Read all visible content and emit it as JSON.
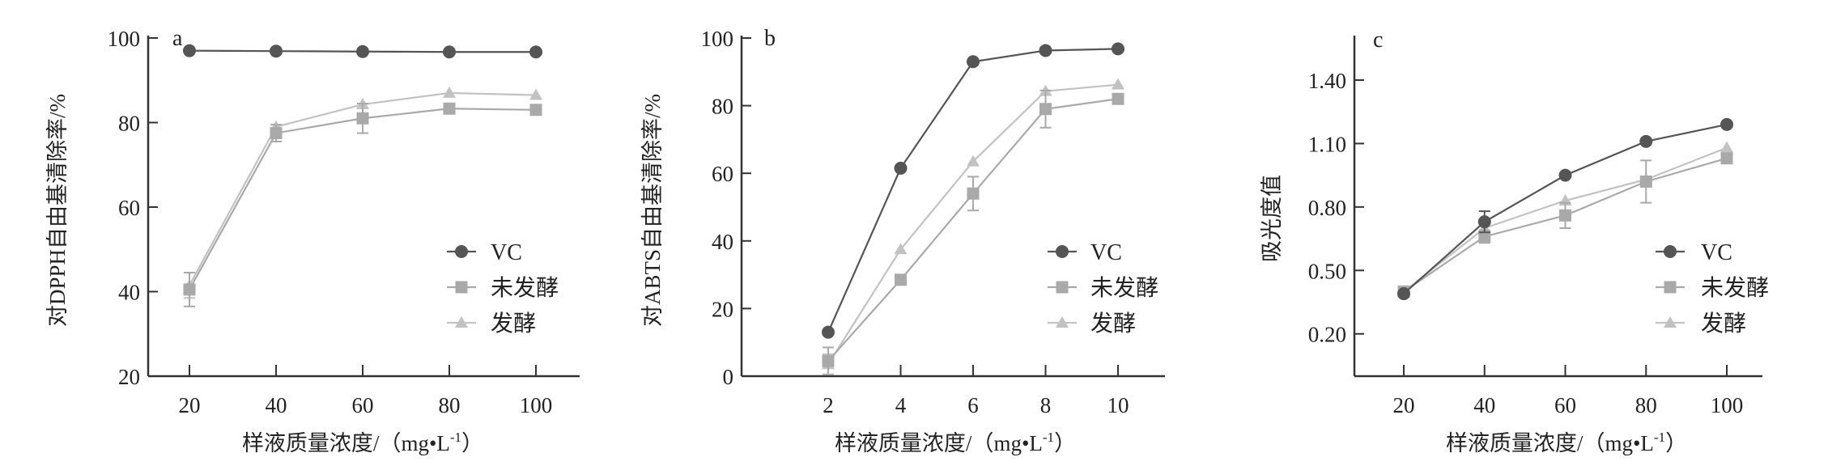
{
  "chart_data": [
    {
      "type": "line",
      "panel_label": "a",
      "xlabel": {
        "main": "样液质量浓度/（mg•L",
        "sup": "-1",
        "end": "）"
      },
      "ylabel": "对DPPH自由基清除率/%",
      "x": [
        20,
        40,
        60,
        80,
        100
      ],
      "xticks": [
        "20",
        "40",
        "60",
        "80",
        "100"
      ],
      "yticks": [
        20,
        40,
        60,
        80,
        100
      ],
      "ytick_labels": [
        "20",
        "40",
        "60",
        "80",
        "100"
      ],
      "ylim": [
        20,
        100
      ],
      "grid": false,
      "legend_position": "center-right",
      "series": [
        {
          "name": "VC",
          "marker": "circle",
          "color": "#555555",
          "values": [
            97.0,
            96.9,
            96.8,
            96.7,
            96.7
          ],
          "errors": [
            0.3,
            0.3,
            0.3,
            0.3,
            0.3
          ]
        },
        {
          "name": "未发酵",
          "marker": "square",
          "color": "#a9a9a9",
          "values": [
            40.5,
            77.5,
            81.0,
            83.3,
            83.0
          ],
          "errors": [
            4.0,
            2.0,
            3.5,
            0.5,
            0.5
          ]
        },
        {
          "name": "发酵",
          "marker": "triangle",
          "color": "#c2c2c2",
          "values": [
            41.5,
            79.0,
            84.3,
            87.0,
            86.5
          ],
          "errors": [
            3.0,
            1.5,
            0.5,
            0.5,
            0.5
          ]
        }
      ]
    },
    {
      "type": "line",
      "panel_label": "b",
      "xlabel": {
        "main": "样液质量浓度/（mg•L",
        "sup": "-1",
        "end": "）"
      },
      "ylabel": "对ABTS自由基清除率/%",
      "x": [
        2,
        4,
        6,
        8,
        10
      ],
      "xticks": [
        "2",
        "4",
        "6",
        "8",
        "10"
      ],
      "yticks": [
        0,
        20,
        40,
        60,
        80,
        100
      ],
      "ytick_labels": [
        "0",
        "20",
        "40",
        "60",
        "80",
        "100"
      ],
      "ylim": [
        0,
        100
      ],
      "grid": false,
      "legend_position": "lower-right",
      "series": [
        {
          "name": "VC",
          "marker": "circle",
          "color": "#555555",
          "values": [
            13.0,
            61.5,
            93.0,
            96.3,
            96.8
          ],
          "errors": [
            0.5,
            0.5,
            0.5,
            0.5,
            0.5
          ]
        },
        {
          "name": "未发酵",
          "marker": "square",
          "color": "#a9a9a9",
          "values": [
            4.5,
            28.5,
            54.0,
            79.0,
            82.0
          ],
          "errors": [
            4.0,
            0.5,
            5.0,
            5.5,
            0.5
          ]
        },
        {
          "name": "发酵",
          "marker": "triangle",
          "color": "#c2c2c2",
          "values": [
            3.5,
            37.5,
            63.5,
            84.3,
            86.2
          ],
          "errors": [
            3.0,
            0.5,
            0.5,
            0.5,
            0.5
          ]
        }
      ]
    },
    {
      "type": "line",
      "panel_label": "c",
      "xlabel": {
        "main": "样液质量浓度/（mg•L",
        "sup": "-1",
        "end": "）"
      },
      "ylabel": "吸光度值",
      "x": [
        20,
        40,
        60,
        80,
        100
      ],
      "xticks": [
        "20",
        "40",
        "60",
        "80",
        "100"
      ],
      "yticks": [
        0.2,
        0.5,
        0.8,
        1.1,
        1.4
      ],
      "ytick_labels": [
        "0.20",
        "0.50",
        "0.80",
        "1.10",
        "1.40"
      ],
      "ylim": [
        0.0,
        1.61
      ],
      "grid": false,
      "legend_position": "lower-right",
      "series": [
        {
          "name": "VC",
          "marker": "circle",
          "color": "#555555",
          "values": [
            0.39,
            0.73,
            0.95,
            1.11,
            1.19
          ],
          "errors": [
            0.01,
            0.05,
            0.01,
            0.01,
            0.01
          ]
        },
        {
          "name": "未发酵",
          "marker": "square",
          "color": "#a9a9a9",
          "values": [
            0.4,
            0.66,
            0.76,
            0.92,
            1.03
          ],
          "errors": [
            0.01,
            0.03,
            0.06,
            0.1,
            0.01
          ]
        },
        {
          "name": "发酵",
          "marker": "triangle",
          "color": "#c2c2c2",
          "values": [
            0.4,
            0.7,
            0.83,
            0.93,
            1.08
          ],
          "errors": [
            0.01,
            0.02,
            0.01,
            0.01,
            0.01
          ]
        }
      ]
    }
  ]
}
